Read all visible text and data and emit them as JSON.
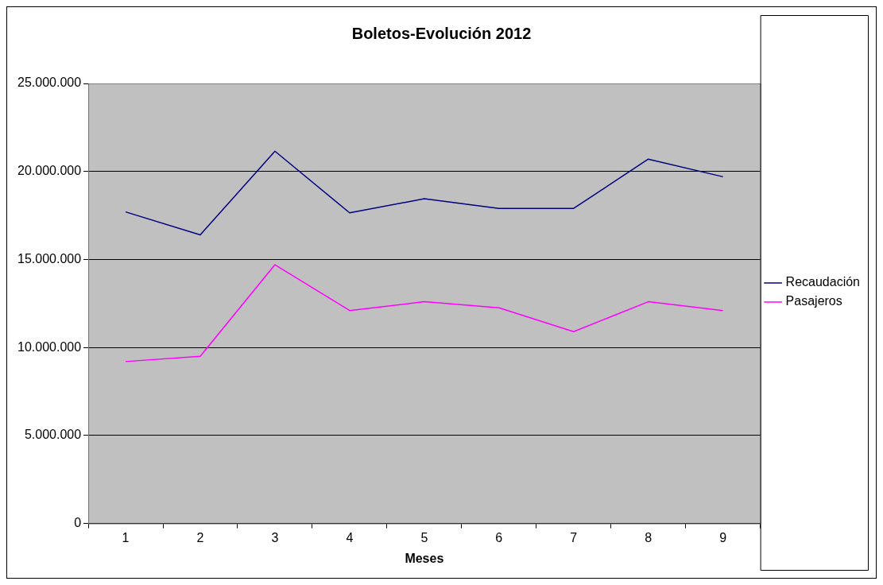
{
  "chart_data": {
    "type": "line",
    "title": "Boletos-Evolución 2012",
    "xlabel": "Meses",
    "categories": [
      "1",
      "2",
      "3",
      "4",
      "5",
      "6",
      "7",
      "8",
      "9"
    ],
    "series": [
      {
        "name": "Recaudación",
        "color": "#000080",
        "values": [
          17700000,
          16400000,
          21150000,
          17650000,
          18450000,
          17900000,
          17900000,
          20700000,
          19700000
        ]
      },
      {
        "name": "Pasajeros",
        "color": "#ff00ff",
        "values": [
          9200000,
          9500000,
          14700000,
          12100000,
          12600000,
          12250000,
          10900000,
          12600000,
          12100000
        ]
      }
    ],
    "ylim": [
      0,
      25000000
    ],
    "yticks": [
      0,
      {
        "value": 5000000,
        "label": "5.000.000"
      },
      {
        "value": 10000000,
        "label": "10.000.000"
      },
      {
        "value": 15000000,
        "label": "15.000.000"
      },
      {
        "value": 20000000,
        "label": "20.000.000"
      },
      {
        "value": 25000000,
        "label": "25.000.000"
      }
    ],
    "grid": "y",
    "legend": "right",
    "marker": "none",
    "line_style": "solid"
  }
}
